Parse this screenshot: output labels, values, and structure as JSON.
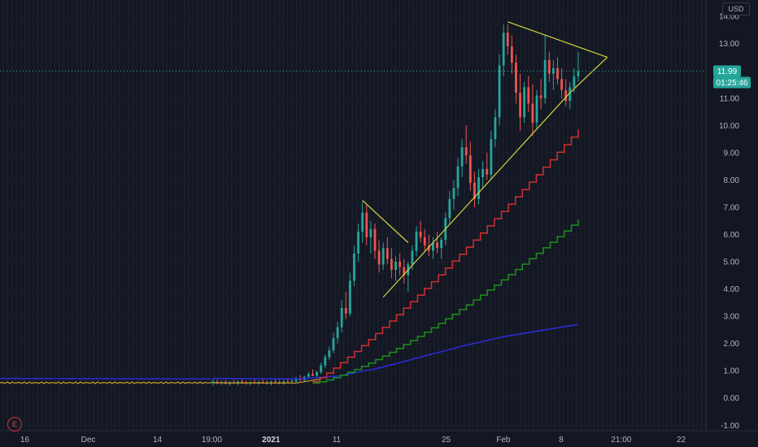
{
  "currency": "USD",
  "last_price": "11.99",
  "countdown": "01:25:46",
  "earnings_marker": "E",
  "colors": {
    "background": "#131722",
    "up": "#26a69a",
    "down": "#ef5350",
    "trendline": "#d4d43c",
    "price_line": "#26a69a",
    "step_red": "#d32f2f",
    "step_green": "#1e8f1e",
    "ma_blue": "#2b2bd6",
    "ma_orange": "#c8a028"
  },
  "chart_data": {
    "type": "candlestick",
    "y_ticks": [
      "14.00",
      "13.00",
      "12.00",
      "11.00",
      "10.00",
      "9.00",
      "8.00",
      "7.00",
      "6.00",
      "5.00",
      "4.00",
      "3.00",
      "2.00",
      "1.00",
      "0.00",
      "-1.00"
    ],
    "y_tick_values": [
      14,
      13,
      12,
      11,
      10,
      9,
      8,
      7,
      6,
      5,
      4,
      3,
      2,
      1,
      0,
      -1
    ],
    "ylim": [
      -1.2,
      14.6
    ],
    "x_labels": [
      {
        "text": "16",
        "bold": false,
        "pos": 0.035
      },
      {
        "text": "Dec",
        "bold": false,
        "pos": 0.125
      },
      {
        "text": "14",
        "bold": false,
        "pos": 0.223
      },
      {
        "text": "19:00",
        "bold": false,
        "pos": 0.3
      },
      {
        "text": "2021",
        "bold": true,
        "pos": 0.384
      },
      {
        "text": "11",
        "bold": false,
        "pos": 0.477
      },
      {
        "text": "25",
        "bold": false,
        "pos": 0.632
      },
      {
        "text": "Feb",
        "bold": false,
        "pos": 0.713
      },
      {
        "text": "8",
        "bold": false,
        "pos": 0.795
      },
      {
        "text": "21:00",
        "bold": false,
        "pos": 0.88
      },
      {
        "text": "22",
        "bold": false,
        "pos": 0.965
      }
    ],
    "candles": [
      [
        0,
        0.55,
        0.7,
        0.45,
        0.6
      ],
      [
        1,
        0.6,
        0.68,
        0.5,
        0.55
      ],
      [
        2,
        0.55,
        0.65,
        0.48,
        0.58
      ],
      [
        3,
        0.58,
        0.66,
        0.5,
        0.52
      ],
      [
        4,
        0.52,
        0.62,
        0.45,
        0.57
      ],
      [
        5,
        0.57,
        0.66,
        0.5,
        0.54
      ],
      [
        6,
        0.54,
        0.64,
        0.47,
        0.6
      ],
      [
        7,
        0.6,
        0.7,
        0.52,
        0.56
      ],
      [
        8,
        0.56,
        0.64,
        0.48,
        0.53
      ],
      [
        9,
        0.53,
        0.62,
        0.46,
        0.58
      ],
      [
        10,
        0.58,
        0.68,
        0.51,
        0.55
      ],
      [
        11,
        0.55,
        0.64,
        0.48,
        0.59
      ],
      [
        12,
        0.59,
        0.69,
        0.52,
        0.56
      ],
      [
        13,
        0.56,
        0.65,
        0.49,
        0.54
      ],
      [
        14,
        0.54,
        0.63,
        0.47,
        0.6
      ],
      [
        15,
        0.6,
        0.72,
        0.53,
        0.58
      ],
      [
        16,
        0.58,
        0.67,
        0.5,
        0.55
      ],
      [
        17,
        0.55,
        0.66,
        0.48,
        0.61
      ],
      [
        18,
        0.61,
        0.72,
        0.54,
        0.59
      ],
      [
        19,
        0.59,
        0.7,
        0.52,
        0.62
      ],
      [
        20,
        0.62,
        0.78,
        0.56,
        0.7
      ],
      [
        21,
        0.7,
        0.85,
        0.62,
        0.66
      ],
      [
        22,
        0.66,
        0.82,
        0.6,
        0.78
      ],
      [
        23,
        0.78,
        0.95,
        0.7,
        0.88
      ],
      [
        24,
        0.88,
        1.05,
        0.8,
        0.82
      ],
      [
        25,
        0.82,
        1.0,
        0.75,
        0.95
      ],
      [
        26,
        0.95,
        1.3,
        0.88,
        1.2
      ],
      [
        27,
        1.2,
        1.6,
        1.1,
        1.5
      ],
      [
        28,
        1.5,
        1.9,
        1.4,
        1.75
      ],
      [
        29,
        1.75,
        2.4,
        1.65,
        2.2
      ],
      [
        30,
        2.2,
        2.8,
        2.0,
        2.6
      ],
      [
        31,
        2.6,
        3.6,
        2.4,
        3.3
      ],
      [
        32,
        3.3,
        3.9,
        2.9,
        3.1
      ],
      [
        33,
        3.1,
        4.6,
        3.0,
        4.3
      ],
      [
        34,
        4.3,
        5.6,
        4.1,
        5.3
      ],
      [
        35,
        5.3,
        6.4,
        5.0,
        6.1
      ],
      [
        36,
        6.1,
        7.2,
        5.7,
        6.8
      ],
      [
        37,
        6.8,
        7.1,
        5.6,
        5.9
      ],
      [
        38,
        5.9,
        6.5,
        5.3,
        6.2
      ],
      [
        39,
        6.2,
        6.4,
        5.1,
        5.4
      ],
      [
        40,
        5.4,
        5.8,
        4.6,
        4.9
      ],
      [
        41,
        4.9,
        5.7,
        4.7,
        5.5
      ],
      [
        42,
        5.5,
        5.9,
        4.9,
        5.1
      ],
      [
        43,
        5.1,
        5.5,
        4.4,
        4.7
      ],
      [
        44,
        4.7,
        5.2,
        4.3,
        5.0
      ],
      [
        45,
        5.0,
        5.3,
        4.5,
        4.8
      ],
      [
        46,
        4.8,
        5.1,
        4.2,
        4.5
      ],
      [
        47,
        4.5,
        5.0,
        3.9,
        4.9
      ],
      [
        48,
        4.9,
        5.6,
        4.7,
        5.4
      ],
      [
        49,
        5.4,
        6.3,
        5.2,
        6.1
      ],
      [
        50,
        6.1,
        6.5,
        5.7,
        5.9
      ],
      [
        51,
        5.9,
        6.2,
        5.4,
        5.6
      ],
      [
        52,
        5.6,
        6.0,
        5.2,
        5.4
      ],
      [
        53,
        5.4,
        5.9,
        5.1,
        5.7
      ],
      [
        54,
        5.7,
        6.1,
        5.3,
        5.5
      ],
      [
        55,
        5.5,
        5.9,
        5.1,
        5.8
      ],
      [
        56,
        5.8,
        6.8,
        5.6,
        6.6
      ],
      [
        57,
        6.6,
        7.6,
        6.4,
        7.3
      ],
      [
        58,
        7.3,
        8.0,
        6.9,
        7.7
      ],
      [
        59,
        7.7,
        8.8,
        7.4,
        8.5
      ],
      [
        60,
        8.5,
        9.5,
        8.1,
        9.2
      ],
      [
        61,
        9.2,
        10.0,
        8.6,
        8.9
      ],
      [
        62,
        8.9,
        9.4,
        7.6,
        7.9
      ],
      [
        63,
        7.9,
        8.3,
        7.0,
        7.3
      ],
      [
        64,
        7.3,
        8.4,
        7.1,
        8.1
      ],
      [
        65,
        8.1,
        8.7,
        7.7,
        8.4
      ],
      [
        66,
        8.4,
        9.0,
        8.0,
        8.2
      ],
      [
        67,
        8.2,
        9.8,
        8.0,
        9.5
      ],
      [
        68,
        9.5,
        10.6,
        9.2,
        10.3
      ],
      [
        69,
        10.3,
        12.6,
        10.0,
        12.2
      ],
      [
        70,
        12.2,
        13.7,
        11.8,
        13.4
      ],
      [
        71,
        13.4,
        13.7,
        12.6,
        12.9
      ],
      [
        72,
        12.9,
        13.3,
        11.9,
        12.3
      ],
      [
        73,
        12.3,
        12.6,
        10.8,
        11.2
      ],
      [
        74,
        11.2,
        11.9,
        9.8,
        10.3
      ],
      [
        75,
        10.3,
        11.6,
        10.1,
        11.4
      ],
      [
        76,
        11.4,
        11.8,
        10.5,
        10.8
      ],
      [
        77,
        10.8,
        11.5,
        9.6,
        10.1
      ],
      [
        78,
        10.1,
        11.3,
        9.9,
        11.1
      ],
      [
        79,
        11.1,
        11.7,
        10.6,
        11.0
      ],
      [
        80,
        11.0,
        13.3,
        10.8,
        12.4
      ],
      [
        81,
        12.4,
        12.7,
        11.6,
        11.9
      ],
      [
        82,
        11.9,
        12.4,
        11.3,
        12.1
      ],
      [
        83,
        12.1,
        12.5,
        11.5,
        11.7
      ],
      [
        84,
        11.7,
        12.1,
        11.0,
        11.3
      ],
      [
        85,
        11.3,
        11.7,
        10.7,
        10.9
      ],
      [
        86,
        10.9,
        11.6,
        10.6,
        11.4
      ],
      [
        87,
        11.4,
        12.1,
        11.2,
        11.8
      ],
      [
        88,
        11.8,
        12.7,
        11.6,
        11.99
      ]
    ],
    "ma_orange": [
      [
        0,
        0.56
      ],
      [
        20,
        0.55
      ],
      [
        26,
        0.7
      ]
    ],
    "ma_blue": [
      [
        0,
        0.72
      ],
      [
        20,
        0.7
      ],
      [
        30,
        0.8
      ],
      [
        40,
        1.1
      ],
      [
        50,
        1.5
      ],
      [
        60,
        1.9
      ],
      [
        70,
        2.25
      ],
      [
        80,
        2.5
      ],
      [
        88,
        2.7
      ]
    ],
    "step_red": [
      [
        24,
        0.6
      ],
      [
        88,
        9.85
      ]
    ],
    "step_green": [
      [
        24,
        0.55
      ],
      [
        88,
        6.55
      ]
    ],
    "trendlines": [
      [
        [
          36,
          7.25
        ],
        [
          47,
          5.7
        ]
      ],
      [
        [
          41,
          3.7
        ],
        [
          86,
          11.2
        ],
        [
          95,
          12.5
        ]
      ],
      [
        [
          71,
          13.8
        ],
        [
          95,
          12.5
        ]
      ]
    ]
  }
}
